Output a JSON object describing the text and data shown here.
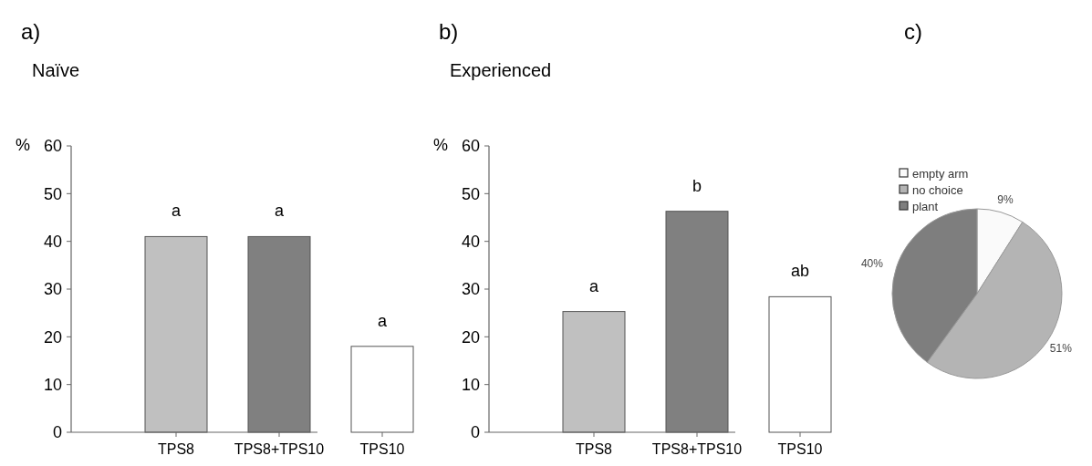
{
  "chart_data": [
    {
      "type": "bar",
      "title": "a)",
      "subtitle": "Naïve",
      "ylabel": "%",
      "categories": [
        "TPS8",
        "TPS8+TPS10",
        "TPS10"
      ],
      "values": [
        41,
        41,
        18
      ],
      "colors": [
        "#c0c0c0",
        "#808080",
        "#ffffff"
      ],
      "ylim": [
        0,
        60
      ],
      "yticks": [
        0,
        10,
        20,
        30,
        40,
        50,
        60
      ],
      "grid": false,
      "annotations": [
        "a",
        "a",
        "a"
      ]
    },
    {
      "type": "bar",
      "title": "b)",
      "subtitle": "Experienced",
      "ylabel": "%",
      "categories": [
        "TPS8",
        "TPS8+TPS10",
        "TPS10"
      ],
      "values": [
        25.3,
        46.3,
        28.4
      ],
      "colors": [
        "#c0c0c0",
        "#808080",
        "#ffffff"
      ],
      "ylim": [
        0,
        60
      ],
      "yticks": [
        0,
        10,
        20,
        30,
        40,
        50,
        60
      ],
      "grid": false,
      "annotations": [
        "a",
        "b",
        "ab"
      ]
    },
    {
      "type": "pie",
      "title": "c)",
      "categories": [
        "empty arm",
        "no choice",
        "plant"
      ],
      "values": [
        9,
        51,
        40
      ],
      "colors": [
        "#fafafa",
        "#b4b4b4",
        "#7e7e7e"
      ],
      "value_labels": [
        "9%",
        "51%",
        "40%"
      ],
      "legend": "top left"
    }
  ]
}
